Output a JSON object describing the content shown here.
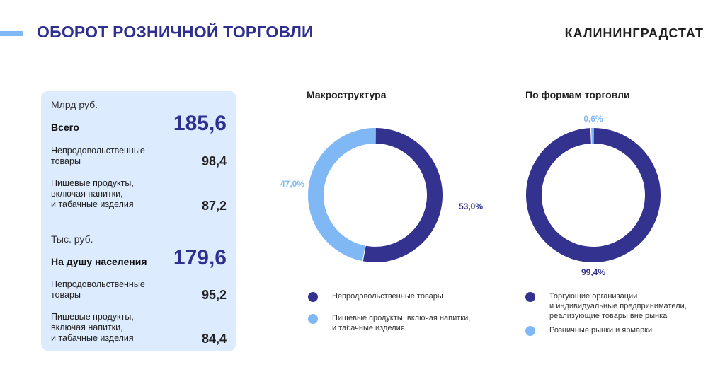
{
  "header": {
    "title": "ОБОРОТ РОЗНИЧНОЙ ТОРГОВЛИ",
    "brand": "КАЛИНИНГРАДСТАТ"
  },
  "colors": {
    "dark": "#33338f",
    "light": "#7fb8f5",
    "panel": "#dcebfd",
    "title": "#2f2f8f"
  },
  "panel": {
    "unit1": "Млрд руб.",
    "total_label": "Всего",
    "total_value": "185,6",
    "nonfood_label": "Непродовольственные\nтовары",
    "nonfood_value": "98,4",
    "food_label": "Пищевые продукты,\nвключая напитки,\nи табачные изделия",
    "food_value": "87,2",
    "unit2": "Тыс. руб.",
    "percap_label": "На душу населения",
    "percap_value": "179,6",
    "nonfood2_label": "Непродовольственные\nтовары",
    "nonfood2_value": "95,2",
    "food2_label": "Пищевые продукты,\nвключая напитки,\nи табачные изделия",
    "food2_value": "84,4"
  },
  "chart_data": [
    {
      "type": "pie",
      "title": "Макроструктура",
      "categories": [
        "Непродовольственные товары",
        "Пищевые продукты, включая напитки, и табачные изделия"
      ],
      "values": [
        53.0,
        47.0
      ],
      "labels": [
        "53,0%",
        "47,0%"
      ],
      "colors": [
        "#33338f",
        "#7fb8f5"
      ],
      "legend": [
        "Непродовольственные товары",
        "Пищевые продукты, включая напитки,\nи табачные изделия"
      ]
    },
    {
      "type": "pie",
      "title": "По формам торговли",
      "categories": [
        "Торгующие организации и индивидуальные предприниматели, реализующие товары вне рынка",
        "Розничные рынки и ярмарки"
      ],
      "values": [
        99.4,
        0.6
      ],
      "labels": [
        "99,4%",
        "0,6%"
      ],
      "colors": [
        "#33338f",
        "#7fb8f5"
      ],
      "legend": [
        "Торгующие организации\nи индивидуальные предприниматели,\nреализующие товары вне рынка",
        "Розничные рынки и ярмарки"
      ]
    }
  ]
}
